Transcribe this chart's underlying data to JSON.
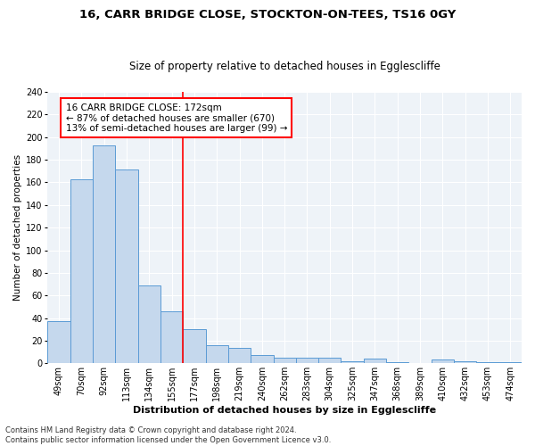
{
  "title1": "16, CARR BRIDGE CLOSE, STOCKTON-ON-TEES, TS16 0GY",
  "title2": "Size of property relative to detached houses in Egglescliffe",
  "xlabel": "Distribution of detached houses by size in Egglescliffe",
  "ylabel": "Number of detached properties",
  "bar_color": "#c5d8ed",
  "bar_edge_color": "#5b9bd5",
  "categories": [
    "49sqm",
    "70sqm",
    "92sqm",
    "113sqm",
    "134sqm",
    "155sqm",
    "177sqm",
    "198sqm",
    "219sqm",
    "240sqm",
    "262sqm",
    "283sqm",
    "304sqm",
    "325sqm",
    "347sqm",
    "368sqm",
    "389sqm",
    "410sqm",
    "432sqm",
    "453sqm",
    "474sqm"
  ],
  "values": [
    37,
    163,
    193,
    171,
    69,
    46,
    30,
    16,
    14,
    7,
    5,
    5,
    5,
    2,
    4,
    1,
    0,
    3,
    2,
    1,
    1
  ],
  "vline_x": 5.5,
  "annotation_text": "16 CARR BRIDGE CLOSE: 172sqm\n← 87% of detached houses are smaller (670)\n13% of semi-detached houses are larger (99) →",
  "annotation_box_color": "white",
  "annotation_box_edge_color": "red",
  "vline_color": "red",
  "ylim": [
    0,
    240
  ],
  "yticks": [
    0,
    20,
    40,
    60,
    80,
    100,
    120,
    140,
    160,
    180,
    200,
    220,
    240
  ],
  "footnote": "Contains HM Land Registry data © Crown copyright and database right 2024.\nContains public sector information licensed under the Open Government Licence v3.0.",
  "bg_color": "#eef3f8",
  "grid_color": "white",
  "title1_fontsize": 9.5,
  "title2_fontsize": 8.5,
  "xlabel_fontsize": 8,
  "ylabel_fontsize": 7.5,
  "tick_fontsize": 7,
  "annot_fontsize": 7.5,
  "footnote_fontsize": 6
}
